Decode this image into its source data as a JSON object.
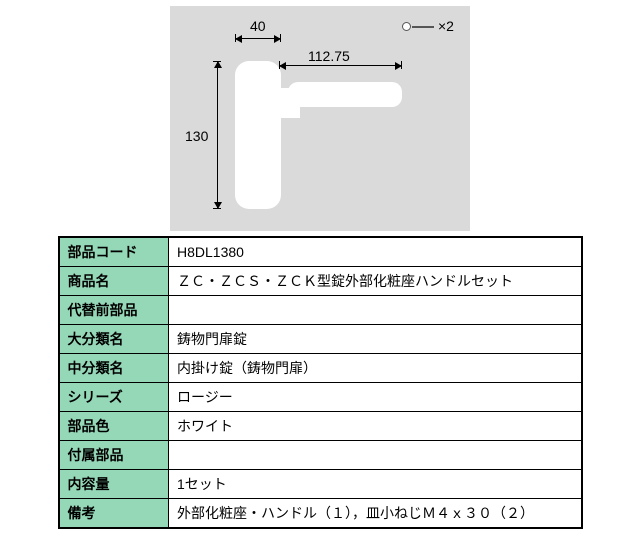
{
  "diagram": {
    "background": "#dadada",
    "handle_color": "#ffffff",
    "dim_width_top": "40",
    "dim_width_lever": "112.75",
    "dim_height": "130",
    "screw_label": "×2"
  },
  "table": {
    "header_bg": "#95d8b8",
    "rows": [
      {
        "label": "部品コード",
        "value": "H8DL1380"
      },
      {
        "label": "商品名",
        "value": "ＺＣ・ＺＣＳ・ＺＣＫ型錠外部化粧座ハンドルセット"
      },
      {
        "label": "代替前部品",
        "value": ""
      },
      {
        "label": "大分類名",
        "value": "鋳物門扉錠"
      },
      {
        "label": "中分類名",
        "value": "内掛け錠（鋳物門扉）"
      },
      {
        "label": "シリーズ",
        "value": "ロージー"
      },
      {
        "label": "部品色",
        "value": "ホワイト"
      },
      {
        "label": "付属部品",
        "value": ""
      },
      {
        "label": "内容量",
        "value": "1セット"
      },
      {
        "label": "備考",
        "value": "外部化粧座・ハンドル（１），皿小ねじＭ４ｘ３０（２）"
      }
    ]
  }
}
